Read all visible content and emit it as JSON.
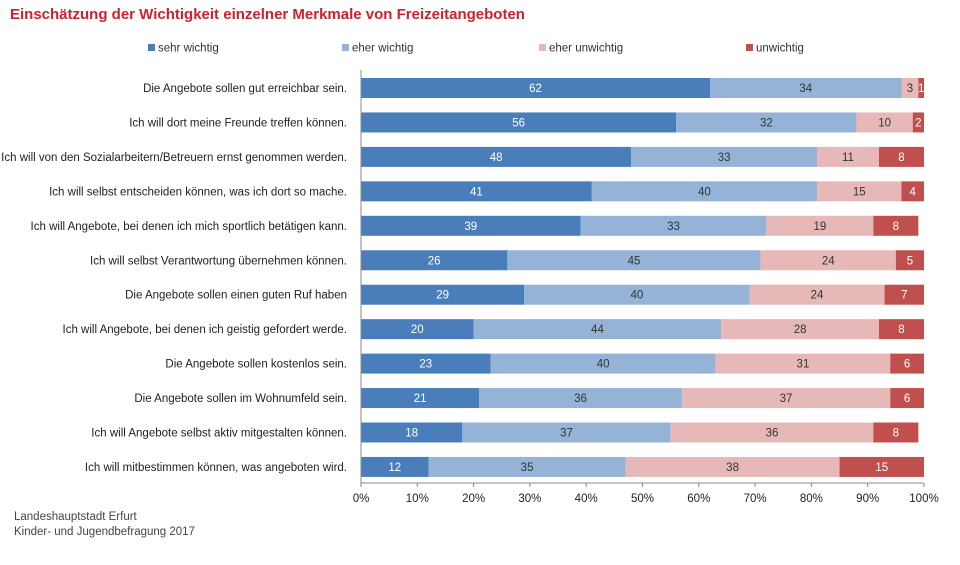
{
  "title": "Einschätzung der Wichtigkeit einzelner Merkmale von Freizeitangeboten",
  "source": {
    "line1": "Landeshauptstadt Erfurt",
    "line2": "Kinder- und Jugendbefragung 2017"
  },
  "colors": {
    "sehr_wichtig": "#4a7ebb",
    "eher_wichtig": "#95b3d7",
    "eher_unwichtig": "#e6b9b8",
    "unwichtig": "#c0504d"
  },
  "chart_data": {
    "type": "bar",
    "orientation": "horizontal",
    "stacked": true,
    "percent_stacked": true,
    "xlim": [
      0,
      100
    ],
    "x_ticks": [
      "0%",
      "10%",
      "20%",
      "30%",
      "40%",
      "50%",
      "60%",
      "70%",
      "80%",
      "90%",
      "100%"
    ],
    "legend_position": "top",
    "grid": false,
    "categories": [
      "Die Angebote sollen gut erreichbar sein.",
      "Ich will dort meine Freunde treffen können.",
      "Ich will von den Sozialarbeitern/Betreuern ernst genommen werden.",
      "Ich will selbst entscheiden können, was ich dort so mache.",
      "Ich will Angebote, bei denen ich mich sportlich betätigen kann.",
      "Ich will selbst Verantwortung übernehmen können.",
      "Die Angebote sollen einen guten Ruf haben",
      "Ich will Angebote, bei denen ich geistig gefordert werde.",
      "Die Angebote sollen kostenlos sein.",
      "Die Angebote sollen im Wohnumfeld sein.",
      "Ich will Angebote selbst aktiv mitgestalten können.",
      "Ich will mitbestimmen können, was angeboten wird."
    ],
    "series": [
      {
        "name": "sehr wichtig",
        "color": "#4a7ebb",
        "values": [
          62,
          56,
          48,
          41,
          39,
          26,
          29,
          20,
          23,
          21,
          18,
          12
        ]
      },
      {
        "name": "eher wichtig",
        "color": "#95b3d7",
        "values": [
          34,
          32,
          33,
          40,
          33,
          45,
          40,
          44,
          40,
          36,
          37,
          35
        ]
      },
      {
        "name": "eher unwichtig",
        "color": "#e6b9b8",
        "values": [
          3,
          10,
          11,
          15,
          19,
          24,
          24,
          28,
          31,
          37,
          36,
          38
        ]
      },
      {
        "name": "unwichtig",
        "color": "#c0504d",
        "values": [
          1,
          2,
          8,
          4,
          8,
          5,
          7,
          8,
          6,
          6,
          8,
          15
        ]
      }
    ]
  }
}
